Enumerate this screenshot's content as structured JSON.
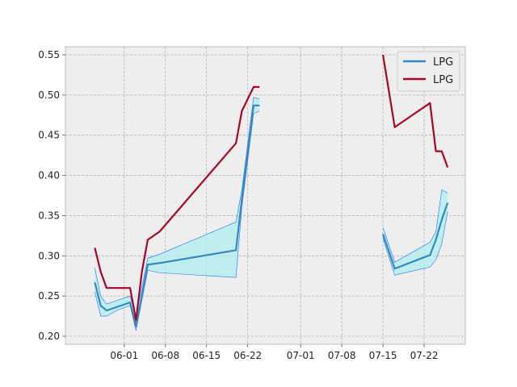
{
  "chart_data": {
    "type": "line",
    "title": "",
    "xlabel": "",
    "ylabel": "",
    "x_axis": {
      "type": "date",
      "range": [
        "2024-05-22",
        "2024-07-29"
      ],
      "ticks": [
        {
          "date": "2024-06-01",
          "label": "06-01"
        },
        {
          "date": "2024-06-08",
          "label": "06-08"
        },
        {
          "date": "2024-06-15",
          "label": "06-15"
        },
        {
          "date": "2024-06-22",
          "label": "06-22"
        },
        {
          "date": "2024-07-01",
          "label": "07-01"
        },
        {
          "date": "2024-07-08",
          "label": "07-08"
        },
        {
          "date": "2024-07-15",
          "label": "07-15"
        },
        {
          "date": "2024-07-22",
          "label": "07-22"
        }
      ]
    },
    "y_axis": {
      "range": [
        0.19,
        0.56
      ],
      "ticks": [
        0.2,
        0.25,
        0.3,
        0.35,
        0.4,
        0.45,
        0.5,
        0.55
      ],
      "tick_labels": [
        "0.20",
        "0.25",
        "0.30",
        "0.35",
        "0.40",
        "0.45",
        "0.50",
        "0.55"
      ]
    },
    "grid": true,
    "legend_position": "top-right",
    "series": [
      {
        "name": "LPG",
        "color": "#348ABD",
        "segments": [
          [
            {
              "x": "2024-05-27",
              "y": 0.267,
              "lo": 0.255,
              "hi": 0.285
            },
            {
              "x": "2024-05-28",
              "y": 0.238,
              "lo": 0.225,
              "hi": 0.25
            },
            {
              "x": "2024-05-29",
              "y": 0.232,
              "lo": 0.225,
              "hi": 0.24
            },
            {
              "x": "2024-05-31",
              "y": 0.237,
              "lo": 0.233,
              "hi": 0.245
            },
            {
              "x": "2024-06-02",
              "y": 0.242,
              "lo": 0.238,
              "hi": 0.25
            },
            {
              "x": "2024-06-03",
              "y": 0.212,
              "lo": 0.207,
              "hi": 0.225
            },
            {
              "x": "2024-06-05",
              "y": 0.289,
              "lo": 0.282,
              "hi": 0.297
            },
            {
              "x": "2024-06-07",
              "y": 0.291,
              "lo": 0.279,
              "hi": 0.302
            },
            {
              "x": "2024-06-20",
              "y": 0.307,
              "lo": 0.273,
              "hi": 0.342
            },
            {
              "x": "2024-06-21",
              "y": 0.37,
              "lo": 0.36,
              "hi": 0.382
            },
            {
              "x": "2024-06-23",
              "y": 0.487,
              "lo": 0.477,
              "hi": 0.497
            },
            {
              "x": "2024-06-24",
              "y": 0.487,
              "lo": 0.48,
              "hi": 0.495
            }
          ],
          [
            {
              "x": "2024-07-15",
              "y": 0.327,
              "lo": 0.322,
              "hi": 0.335
            },
            {
              "x": "2024-07-17",
              "y": 0.284,
              "lo": 0.276,
              "hi": 0.292
            },
            {
              "x": "2024-07-23",
              "y": 0.301,
              "lo": 0.286,
              "hi": 0.317
            },
            {
              "x": "2024-07-24",
              "y": 0.32,
              "lo": 0.295,
              "hi": 0.33
            },
            {
              "x": "2024-07-25",
              "y": 0.345,
              "lo": 0.315,
              "hi": 0.382
            },
            {
              "x": "2024-07-26",
              "y": 0.366,
              "lo": 0.355,
              "hi": 0.378
            }
          ]
        ]
      },
      {
        "name": "LPG",
        "color": "#A60628",
        "segments": [
          [
            {
              "x": "2024-05-27",
              "y": 0.31
            },
            {
              "x": "2024-05-28",
              "y": 0.28
            },
            {
              "x": "2024-05-29",
              "y": 0.26
            },
            {
              "x": "2024-06-02",
              "y": 0.26
            },
            {
              "x": "2024-06-03",
              "y": 0.22
            },
            {
              "x": "2024-06-04",
              "y": 0.28
            },
            {
              "x": "2024-06-05",
              "y": 0.32
            },
            {
              "x": "2024-06-07",
              "y": 0.33
            },
            {
              "x": "2024-06-20",
              "y": 0.44
            },
            {
              "x": "2024-06-21",
              "y": 0.48
            },
            {
              "x": "2024-06-23",
              "y": 0.51
            },
            {
              "x": "2024-06-24",
              "y": 0.51
            }
          ],
          [
            {
              "x": "2024-07-15",
              "y": 0.55
            },
            {
              "x": "2024-07-17",
              "y": 0.46
            },
            {
              "x": "2024-07-23",
              "y": 0.49
            },
            {
              "x": "2024-07-24",
              "y": 0.43
            },
            {
              "x": "2024-07-25",
              "y": 0.43
            },
            {
              "x": "2024-07-26",
              "y": 0.41
            }
          ]
        ]
      }
    ],
    "band_fill_color": "#AFEEEE",
    "band_edge_color": "#1E6FFF"
  }
}
